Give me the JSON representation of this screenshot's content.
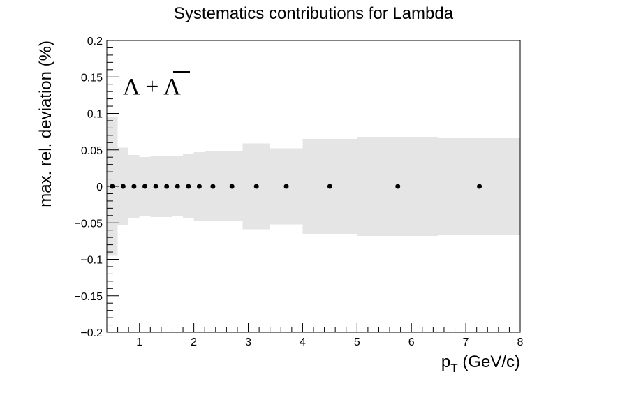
{
  "chart_data": {
    "type": "scatter",
    "title": "Systematics contributions for Lambda",
    "ylabel": "max. rel. deviation (%)",
    "xlabel": "p_T (GeV/c)",
    "xlabel_main": "p",
    "xlabel_sub": "T",
    "xlabel_unit": " (GeV/c)",
    "annotation": "Λ + Λ̄",
    "annotation_main": "Λ + ",
    "annotation_bar": "Λ",
    "xlim": [
      0.4,
      8.0
    ],
    "ylim": [
      -0.2,
      0.2
    ],
    "x_ticks": [
      "1",
      "2",
      "3",
      "4",
      "5",
      "6",
      "7",
      "8"
    ],
    "y_ticks": [
      "0.2",
      "0.15",
      "0.1",
      "0.05",
      "0",
      "−0.05",
      "−0.1",
      "−0.15",
      "−0.2"
    ],
    "colors": {
      "band": "#e5e5e5",
      "marker": "#000000",
      "frame": "#000000"
    },
    "bins": [
      {
        "lo": 0.4,
        "hi": 0.6,
        "x": 0.5,
        "y": 0,
        "sys": 0.095
      },
      {
        "lo": 0.6,
        "hi": 0.8,
        "x": 0.7,
        "y": 0,
        "sys": 0.053
      },
      {
        "lo": 0.8,
        "hi": 1.0,
        "x": 0.9,
        "y": 0,
        "sys": 0.043
      },
      {
        "lo": 1.0,
        "hi": 1.2,
        "x": 1.1,
        "y": 0,
        "sys": 0.04
      },
      {
        "lo": 1.2,
        "hi": 1.4,
        "x": 1.3,
        "y": 0,
        "sys": 0.042
      },
      {
        "lo": 1.4,
        "hi": 1.6,
        "x": 1.5,
        "y": 0,
        "sys": 0.042
      },
      {
        "lo": 1.6,
        "hi": 1.8,
        "x": 1.7,
        "y": 0,
        "sys": 0.041
      },
      {
        "lo": 1.8,
        "hi": 2.0,
        "x": 1.9,
        "y": 0,
        "sys": 0.044
      },
      {
        "lo": 2.0,
        "hi": 2.2,
        "x": 2.1,
        "y": 0,
        "sys": 0.047
      },
      {
        "lo": 2.2,
        "hi": 2.5,
        "x": 2.35,
        "y": 0,
        "sys": 0.048
      },
      {
        "lo": 2.5,
        "hi": 2.9,
        "x": 2.7,
        "y": 0,
        "sys": 0.048
      },
      {
        "lo": 2.9,
        "hi": 3.4,
        "x": 3.15,
        "y": 0,
        "sys": 0.059
      },
      {
        "lo": 3.4,
        "hi": 4.0,
        "x": 3.7,
        "y": 0,
        "sys": 0.052
      },
      {
        "lo": 4.0,
        "hi": 5.0,
        "x": 4.5,
        "y": 0,
        "sys": 0.065
      },
      {
        "lo": 5.0,
        "hi": 6.5,
        "x": 5.75,
        "y": 0,
        "sys": 0.068
      },
      {
        "lo": 6.5,
        "hi": 8.0,
        "x": 7.25,
        "y": 0,
        "sys": 0.066
      }
    ]
  }
}
